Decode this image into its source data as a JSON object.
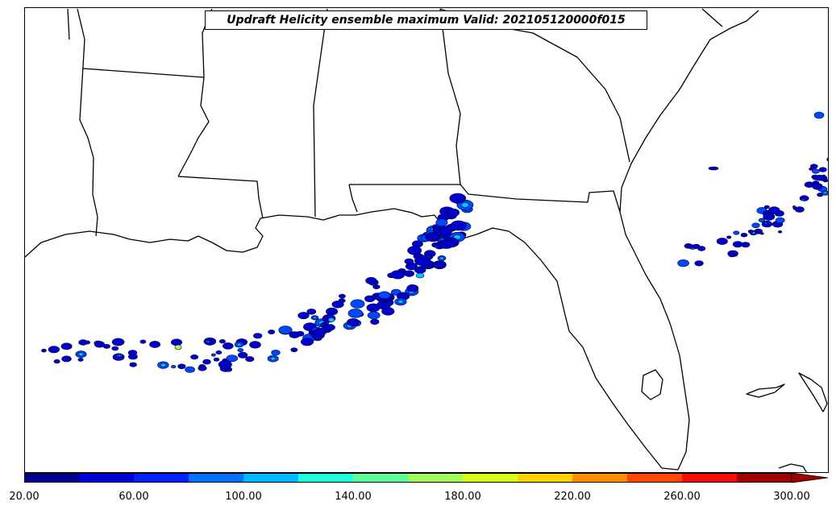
{
  "title": "Updraft Helicity ensemble maximum Valid: 202105120000f015",
  "colorbar": {
    "bins": [
      "#00008c",
      "#0000d9",
      "#0022ff",
      "#0070ff",
      "#00b8ff",
      "#20ffd9",
      "#60ff9c",
      "#a0ff5c",
      "#d9ff20",
      "#ffd400",
      "#ff8e00",
      "#ff4800",
      "#ff0a00",
      "#a00000"
    ],
    "extend_color": "#a00000",
    "tick_labels": [
      "20.00",
      "60.00",
      "100.00",
      "140.00",
      "180.00",
      "220.00",
      "260.00",
      "300.00"
    ]
  },
  "field_colors": {
    "low": "#0000cc",
    "mid": "#0048ff",
    "high": "#00c8ff",
    "peak": "#a0ff5c"
  }
}
